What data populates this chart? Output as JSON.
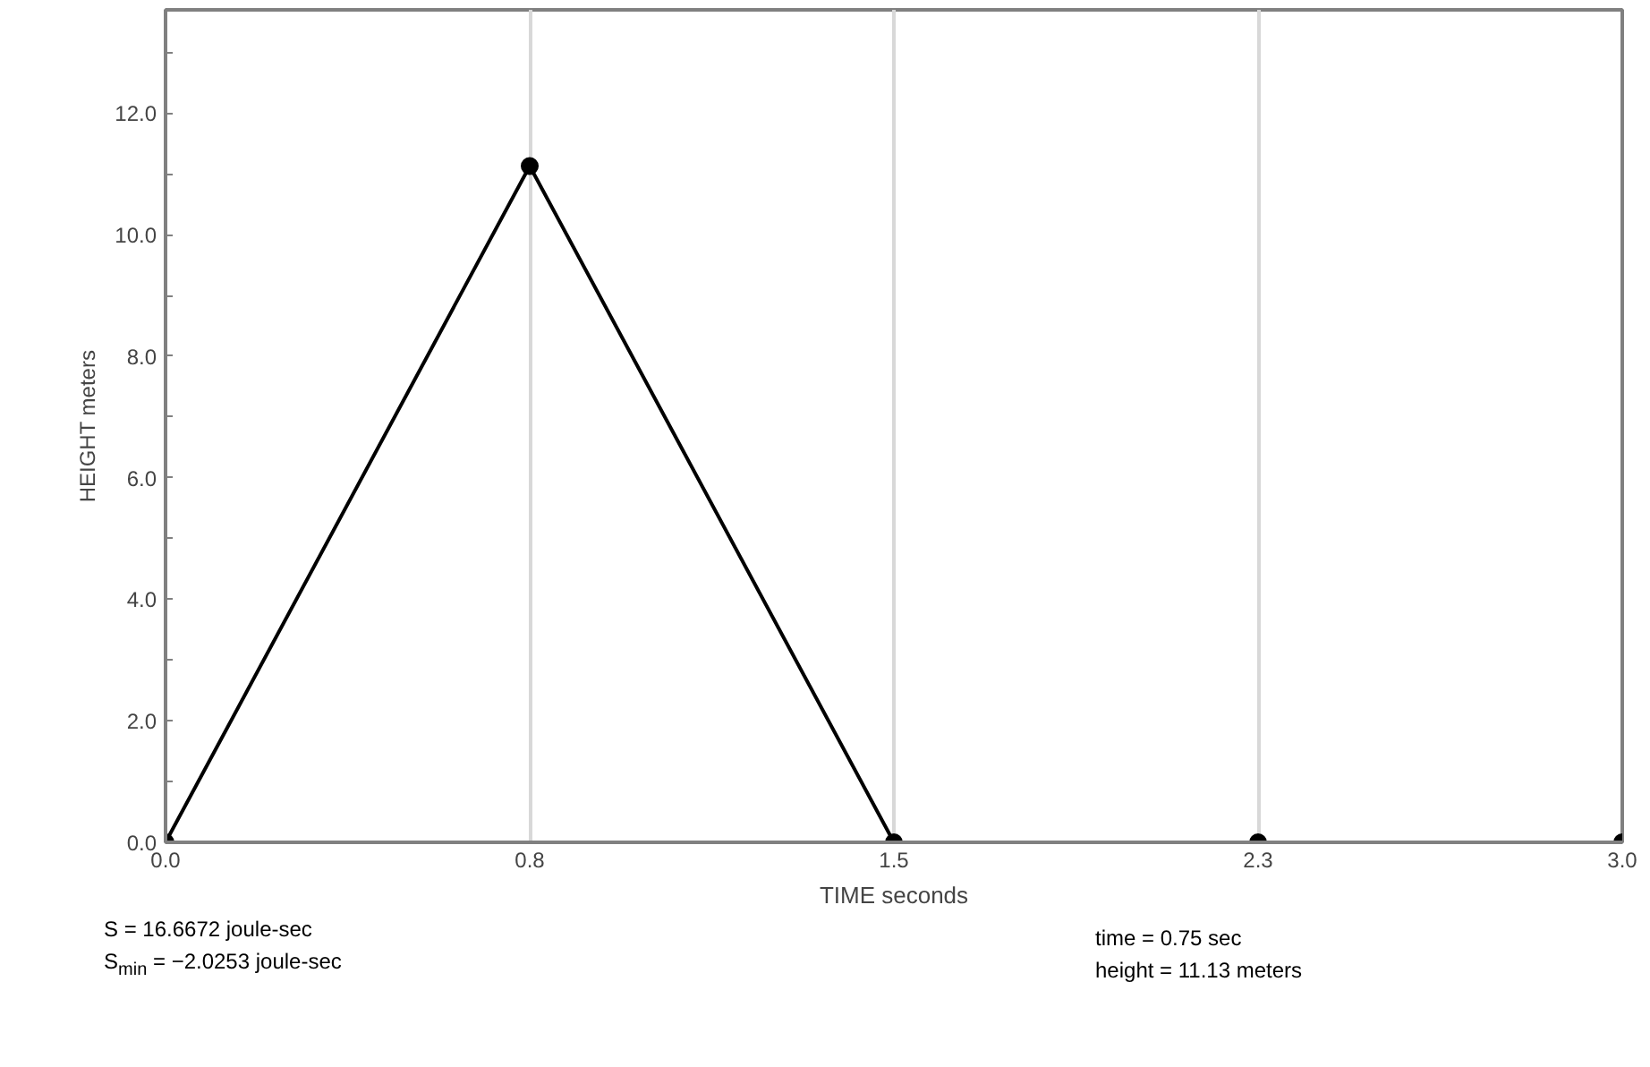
{
  "chart_data": {
    "type": "line",
    "xlabel": "TIME seconds",
    "ylabel": "HEIGHT meters",
    "x": [
      0,
      0.75,
      1.5,
      2.25,
      3.0
    ],
    "series": [
      {
        "color": "#000000",
        "values": [
          0,
          11.13,
          0,
          0,
          0
        ]
      }
    ],
    "xlim": [
      0,
      3.0
    ],
    "ylim": [
      0,
      13.7
    ],
    "xticks": [
      {
        "value": 0,
        "label": "0.0"
      },
      {
        "value": 0.75,
        "label": "0.8"
      },
      1.5,
      {
        "value": 2.25,
        "label": "2.3"
      },
      {
        "value": 3.0,
        "label": "3.0"
      }
    ],
    "yticks": [
      {
        "value": 0,
        "label": "0.0"
      },
      {
        "value": 1,
        "label": null
      },
      {
        "value": 2,
        "label": "2.0"
      },
      {
        "value": 3,
        "label": null
      },
      {
        "value": 4,
        "label": "4.0"
      },
      {
        "value": 5,
        "label": null
      },
      {
        "value": 6,
        "label": "6.0"
      },
      {
        "value": 7,
        "label": null
      },
      {
        "value": 8,
        "label": "8.0"
      },
      {
        "value": 9,
        "label": null
      },
      {
        "value": 10,
        "label": "10.0"
      },
      {
        "value": 11,
        "label": null
      },
      {
        "value": 12,
        "label": "12.0"
      },
      {
        "value": 13,
        "label": null
      }
    ],
    "grid": "x",
    "marker": "circle",
    "line_style": "solid",
    "annotations": [
      "S = 16.6672 joule-sec",
      "S$_{min}$ = −2.0253 joule-sec",
      "time = 0.75 sec",
      "height = 11.13 meters"
    ]
  }
}
